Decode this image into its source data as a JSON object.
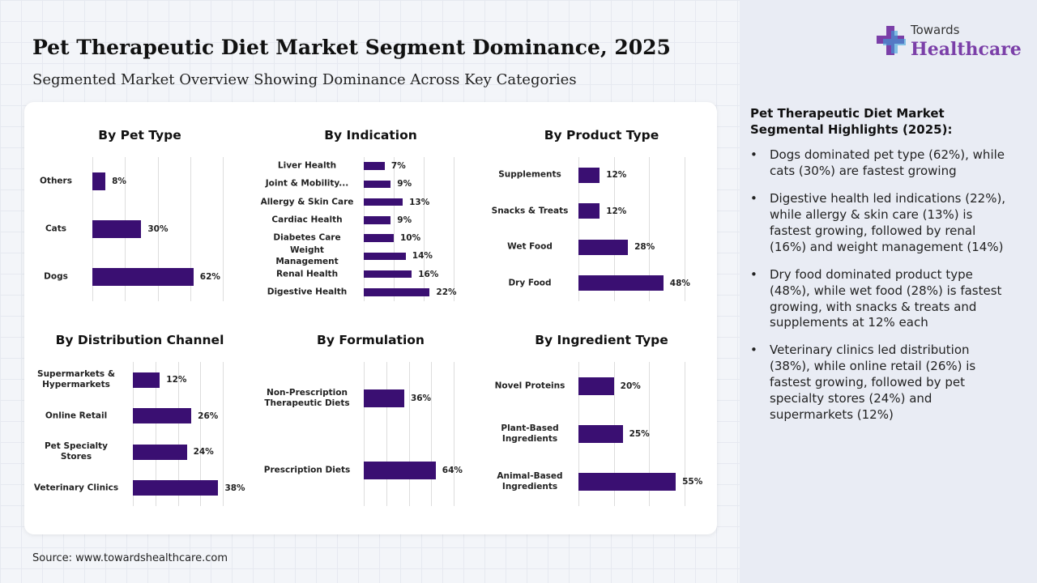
{
  "title": "Pet Therapeutic Diet Market Segment Dominance, 2025",
  "subtitle": "Segmented Market Overview Showing Dominance Across Key Categories",
  "source": "Source: www.towardshealthcare.com",
  "logo": {
    "top": "Towards",
    "bottom": "Healthcare"
  },
  "highlights": {
    "title": "Pet Therapeutic Diet Market Segmental Highlights (2025):",
    "items": [
      "Dogs dominated pet type (62%), while cats (30%) are fastest growing",
      "Digestive health led indications (22%), while allergy & skin care (13%) is fastest growing, followed by renal (16%) and weight management (14%)",
      "Dry food dominated product type (48%), while wet food (28%) is fastest growing, with snacks & treats and supplements at 12% each",
      "Veterinary clinics led distribution (38%), while online retail (26%) is fastest growing, followed by pet specialty stores (24%) and supermarkets (12%)"
    ]
  },
  "chart_data": [
    {
      "type": "bar",
      "title": "By Pet Type",
      "categories": [
        "Others",
        "Cats",
        "Dogs"
      ],
      "values": [
        8,
        30,
        62
      ],
      "value_labels": [
        "8%",
        "30%",
        "62%"
      ],
      "color": "#3a0f72",
      "xlim": [
        0,
        80
      ],
      "xticks": [
        0,
        20,
        40,
        60,
        80
      ],
      "grid": true
    },
    {
      "type": "bar",
      "title": "By Indication",
      "categories": [
        "Liver Health",
        "Joint & Mobility...",
        "Allergy & Skin Care",
        "Cardiac Health",
        "Diabetes Care",
        "Weight Management",
        "Renal Health",
        "Digestive Health"
      ],
      "values": [
        7,
        9,
        13,
        9,
        10,
        14,
        16,
        22
      ],
      "value_labels": [
        "7%",
        "9%",
        "13%",
        "9%",
        "10%",
        "14%",
        "16%",
        "22%"
      ],
      "color": "#3a0f72",
      "xlim": [
        0,
        30
      ],
      "xticks": [
        0,
        10,
        20,
        30
      ],
      "grid": true
    },
    {
      "type": "bar",
      "title": "By Product Type",
      "categories": [
        "Supplements",
        "Snacks & Treats",
        "Wet Food",
        "Dry Food"
      ],
      "values": [
        12,
        12,
        28,
        48
      ],
      "value_labels": [
        "12%",
        "12%",
        "28%",
        "48%"
      ],
      "color": "#3a0f72",
      "xlim": [
        0,
        60
      ],
      "xticks": [
        0,
        20,
        40,
        60
      ],
      "grid": true
    },
    {
      "type": "bar",
      "title": "By Distribution Channel",
      "categories": [
        "Supermarkets & Hypermarkets",
        "Online Retail",
        "Pet Specialty Stores",
        "Veterinary Clinics"
      ],
      "values": [
        12,
        26,
        24,
        38
      ],
      "value_labels": [
        "12%",
        "26%",
        "24%",
        "38%"
      ],
      "color": "#3a0f72",
      "xlim": [
        0,
        40
      ],
      "xticks": [
        0,
        10,
        20,
        30,
        40
      ],
      "grid": true
    },
    {
      "type": "bar",
      "title": "By Formulation",
      "categories": [
        "Non-Prescription Therapeutic Diets",
        "Prescription Diets"
      ],
      "values": [
        36,
        64
      ],
      "value_labels": [
        "36%",
        "64%"
      ],
      "color": "#3a0f72",
      "xlim": [
        0,
        80
      ],
      "xticks": [
        0,
        20,
        40,
        60,
        80
      ],
      "grid": true
    },
    {
      "type": "bar",
      "title": "By Ingredient Type",
      "categories": [
        "Novel Proteins",
        "Plant-Based Ingredients",
        "Animal-Based Ingredients"
      ],
      "values": [
        20,
        25,
        55
      ],
      "value_labels": [
        "20%",
        "25%",
        "55%"
      ],
      "color": "#3a0f72",
      "xlim": [
        0,
        60
      ],
      "xticks": [
        0,
        20,
        40,
        60
      ],
      "grid": true
    }
  ]
}
